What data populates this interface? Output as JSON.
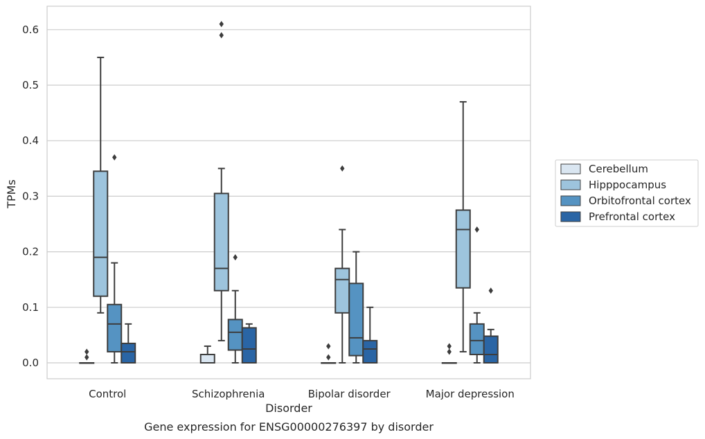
{
  "chart_data": {
    "type": "box",
    "caption": "Gene expression for ENSG00000276397 by disorder",
    "xlabel": "Disorder",
    "ylabel": "TPMs",
    "ylim": [
      -0.03,
      0.64
    ],
    "yticks": [
      0.0,
      0.1,
      0.2,
      0.3,
      0.4,
      0.5,
      0.6
    ],
    "ytick_labels": [
      "0.0",
      "0.1",
      "0.2",
      "0.3",
      "0.4",
      "0.5",
      "0.6"
    ],
    "grid": "horizontal",
    "legend_position": "right",
    "categories": [
      "Control",
      "Schizophrenia",
      "Bipolar disorder",
      "Major depression"
    ],
    "series": [
      {
        "name": "Cerebellum",
        "color": "#dae6f1",
        "boxes": [
          {
            "whislo": 0.0,
            "q1": 0.0,
            "med": 0.0,
            "q3": 0.0,
            "whishi": 0.0,
            "fliers": [
              0.01,
              0.02
            ]
          },
          {
            "whislo": 0.0,
            "q1": 0.0,
            "med": 0.0,
            "q3": 0.015,
            "whishi": 0.03,
            "fliers": []
          },
          {
            "whislo": 0.0,
            "q1": 0.0,
            "med": 0.0,
            "q3": 0.0,
            "whishi": 0.0,
            "fliers": [
              0.01,
              0.03
            ]
          },
          {
            "whislo": 0.0,
            "q1": 0.0,
            "med": 0.0,
            "q3": 0.0,
            "whishi": 0.0,
            "fliers": [
              0.02,
              0.03
            ]
          }
        ]
      },
      {
        "name": "Hipppocampus",
        "color": "#9dc4dd",
        "boxes": [
          {
            "whislo": 0.09,
            "q1": 0.12,
            "med": 0.19,
            "q3": 0.345,
            "whishi": 0.55,
            "fliers": []
          },
          {
            "whislo": 0.04,
            "q1": 0.13,
            "med": 0.17,
            "q3": 0.305,
            "whishi": 0.35,
            "fliers": [
              0.59,
              0.61
            ]
          },
          {
            "whislo": 0.0,
            "q1": 0.09,
            "med": 0.15,
            "q3": 0.17,
            "whishi": 0.24,
            "fliers": [
              0.35
            ]
          },
          {
            "whislo": 0.02,
            "q1": 0.135,
            "med": 0.24,
            "q3": 0.275,
            "whishi": 0.47,
            "fliers": []
          }
        ]
      },
      {
        "name": "Orbitofrontal cortex",
        "color": "#5593c2",
        "boxes": [
          {
            "whislo": 0.0,
            "q1": 0.02,
            "med": 0.07,
            "q3": 0.105,
            "whishi": 0.18,
            "fliers": [
              0.37
            ]
          },
          {
            "whislo": 0.0,
            "q1": 0.023,
            "med": 0.055,
            "q3": 0.078,
            "whishi": 0.13,
            "fliers": [
              0.19
            ]
          },
          {
            "whislo": 0.0,
            "q1": 0.013,
            "med": 0.045,
            "q3": 0.143,
            "whishi": 0.2,
            "fliers": []
          },
          {
            "whislo": 0.0,
            "q1": 0.015,
            "med": 0.04,
            "q3": 0.07,
            "whishi": 0.09,
            "fliers": [
              0.24
            ]
          }
        ]
      },
      {
        "name": "Prefrontal cortex",
        "color": "#2a65a5",
        "boxes": [
          {
            "whislo": 0.0,
            "q1": 0.0,
            "med": 0.02,
            "q3": 0.035,
            "whishi": 0.07,
            "fliers": []
          },
          {
            "whislo": 0.0,
            "q1": 0.0,
            "med": 0.025,
            "q3": 0.063,
            "whishi": 0.07,
            "fliers": []
          },
          {
            "whislo": 0.0,
            "q1": 0.0,
            "med": 0.025,
            "q3": 0.04,
            "whishi": 0.1,
            "fliers": []
          },
          {
            "whislo": 0.0,
            "q1": 0.0,
            "med": 0.015,
            "q3": 0.048,
            "whishi": 0.06,
            "fliers": [
              0.13
            ]
          }
        ]
      }
    ]
  }
}
